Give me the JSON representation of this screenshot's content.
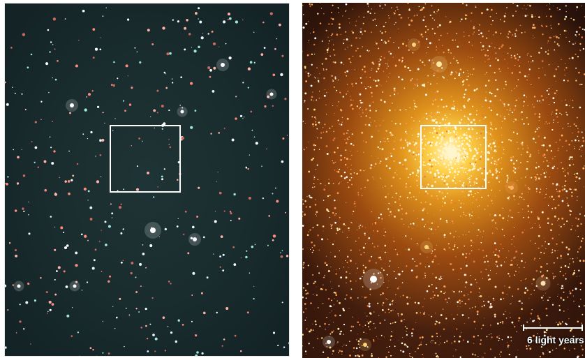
{
  "panels": {
    "left": {
      "description_name": "wide-field-starfield-left"
    },
    "right": {
      "description_name": "wide-field-starfield-right"
    }
  },
  "scale_bar": {
    "label": "6 light years"
  },
  "colors": {
    "left_background": "#182a2c",
    "right_background": "#3d1a0c",
    "right_core": "#ffd24a",
    "frame": "#ffffff"
  }
}
